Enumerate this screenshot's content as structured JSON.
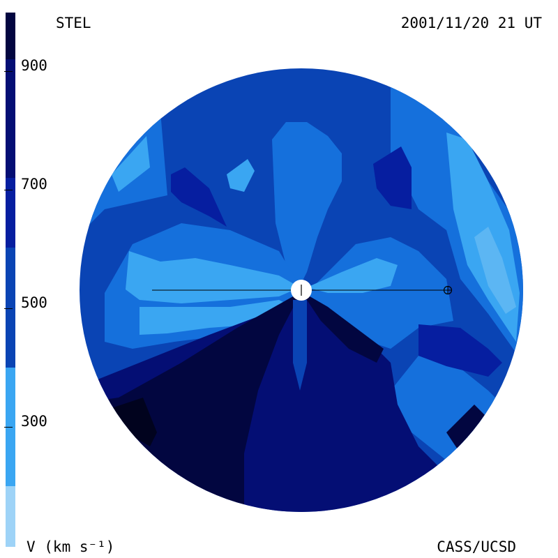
{
  "header": {
    "left": "STEL",
    "right": "2001/11/20 21 UT"
  },
  "footer": {
    "left": "V (km s⁻¹)",
    "right": "CASS/UCSD"
  },
  "colorbar": {
    "ticks": [
      "900",
      "700",
      "500",
      "300"
    ],
    "colors": [
      "#9ed3f7",
      "#3aa6f2",
      "#1570dc",
      "#0a44b4",
      "#061ea0",
      "#040e74",
      "#020640"
    ]
  },
  "colors": {
    "c1": "#9ed3f7",
    "c2": "#3aa6f2",
    "c3": "#1570dc",
    "c4": "#0a44b4",
    "c5": "#061ea0",
    "c6": "#040e74",
    "c7": "#020640"
  }
}
